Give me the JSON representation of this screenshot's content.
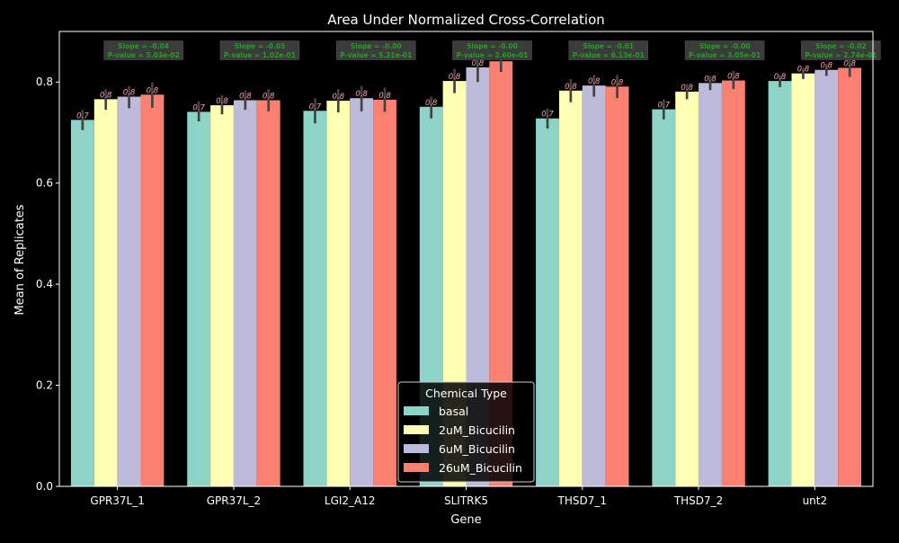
{
  "chart_data": {
    "type": "bar",
    "title": "Area Under Normalized Cross-Correlation",
    "xlabel": "Gene",
    "ylabel": "Mean of Replicates",
    "ylim": [
      0,
      0.9
    ],
    "yticks": [
      0.0,
      0.2,
      0.4,
      0.6,
      0.8
    ],
    "categories": [
      "GPR37L_1",
      "GPR37L_2",
      "LGI2_A12",
      "SLITRK5",
      "THSD7_1",
      "THSD7_2",
      "unt2"
    ],
    "legend": {
      "title": "Chemical Type",
      "position": "bottom-center"
    },
    "series": [
      {
        "name": "basal",
        "color": "#8dd3c7",
        "values": [
          0.725,
          0.741,
          0.743,
          0.751,
          0.728,
          0.746,
          0.802
        ],
        "err_low": [
          0.705,
          0.722,
          0.718,
          0.728,
          0.708,
          0.726,
          0.79
        ],
        "err_high": [
          0.745,
          0.762,
          0.768,
          0.771,
          0.748,
          0.766,
          0.814
        ]
      },
      {
        "name": "2uM_Bicucilin",
        "color": "#ffffb3",
        "values": [
          0.766,
          0.754,
          0.763,
          0.802,
          0.783,
          0.781,
          0.817
        ],
        "err_low": [
          0.745,
          0.736,
          0.74,
          0.778,
          0.76,
          0.766,
          0.806
        ],
        "err_high": [
          0.786,
          0.774,
          0.786,
          0.826,
          0.806,
          0.796,
          0.828
        ]
      },
      {
        "name": "6uM_Bicucilin",
        "color": "#bebada",
        "values": [
          0.771,
          0.764,
          0.768,
          0.829,
          0.793,
          0.798,
          0.824
        ],
        "err_low": [
          0.748,
          0.745,
          0.742,
          0.8,
          0.771,
          0.784,
          0.812
        ],
        "err_high": [
          0.792,
          0.783,
          0.792,
          0.852,
          0.814,
          0.812,
          0.836
        ]
      },
      {
        "name": "26uM_Bicucilin",
        "color": "#fb8072",
        "values": [
          0.775,
          0.764,
          0.765,
          0.841,
          0.791,
          0.803,
          0.828
        ],
        "err_low": [
          0.749,
          0.742,
          0.741,
          0.82,
          0.768,
          0.786,
          0.81
        ],
        "err_high": [
          0.799,
          0.786,
          0.789,
          0.862,
          0.814,
          0.822,
          0.846
        ]
      }
    ],
    "bar_value_labels": [
      [
        "0.7",
        "0.8",
        "0.8",
        "0.8"
      ],
      [
        "0.7",
        "0.8",
        "0.8",
        "0.8"
      ],
      [
        "0.7",
        "0.8",
        "0.8",
        "0.8"
      ],
      [
        "0.8",
        "0.8",
        "0.8",
        "0.8"
      ],
      [
        "0.7",
        "0.8",
        "0.8",
        "0.8"
      ],
      [
        "0.7",
        "0.8",
        "0.8",
        "0.8"
      ],
      [
        "0.8",
        "0.8",
        "0.8",
        "0.8"
      ]
    ],
    "annotations": [
      {
        "slope": "Slope = -0.04",
        "pvalue": "P-value = 5.03e-02"
      },
      {
        "slope": "Slope = -0.03",
        "pvalue": "P-value = 1.02e-01"
      },
      {
        "slope": "Slope = -0.00",
        "pvalue": "P-value = 5.31e-01"
      },
      {
        "slope": "Slope = -0.00",
        "pvalue": "P-value = 2.60e-01"
      },
      {
        "slope": "Slope = -0.01",
        "pvalue": "P-value = 6.13e-01"
      },
      {
        "slope": "Slope = -0.00",
        "pvalue": "P-value = 3.05e-01"
      },
      {
        "slope": "Slope = -0.02",
        "pvalue": "P-value = 2.74e-01"
      }
    ]
  }
}
